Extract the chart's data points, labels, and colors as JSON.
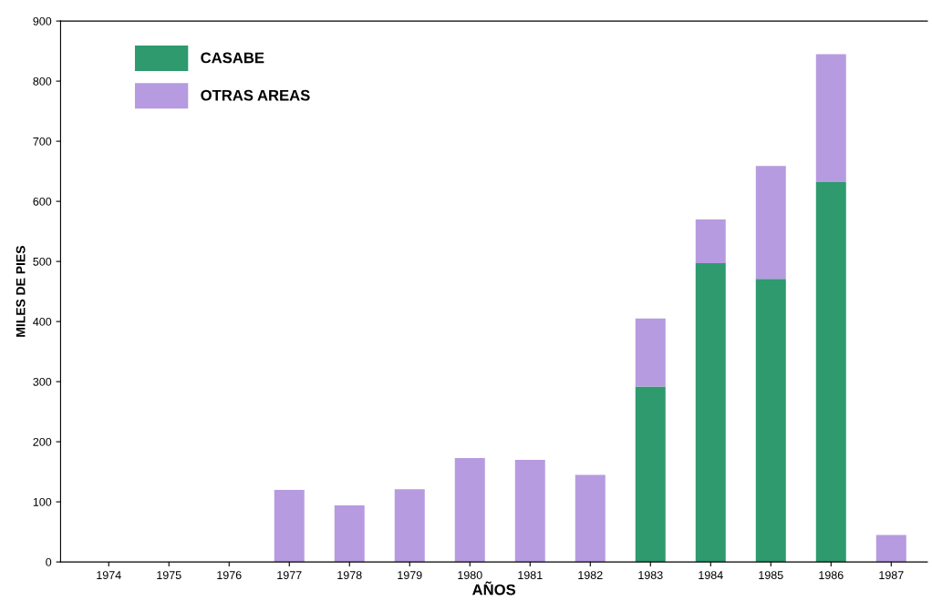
{
  "chart_data": {
    "type": "bar",
    "stacked": true,
    "xlabel": "AÑOS",
    "ylabel": "MILES DE PIES",
    "categories": [
      "1974",
      "1975",
      "1976",
      "1977",
      "1978",
      "1979",
      "1980",
      "1981",
      "1982",
      "1983",
      "1984",
      "1985",
      "1986",
      "1987"
    ],
    "series": [
      {
        "name": "CASABE",
        "color": "#2e9a6e",
        "values": [
          0,
          0,
          0,
          0,
          0,
          0,
          0,
          0,
          0,
          292,
          497,
          471,
          632,
          0
        ]
      },
      {
        "name": "OTRAS AREAS",
        "color": "#b79be0",
        "values": [
          0,
          0,
          0,
          120,
          94,
          121,
          173,
          170,
          145,
          113,
          73,
          188,
          213,
          45
        ]
      }
    ],
    "ylim": [
      0,
      900
    ],
    "yticks": [
      0,
      100,
      200,
      300,
      400,
      500,
      600,
      700,
      800,
      900
    ],
    "grid": false,
    "legend": "top left"
  }
}
